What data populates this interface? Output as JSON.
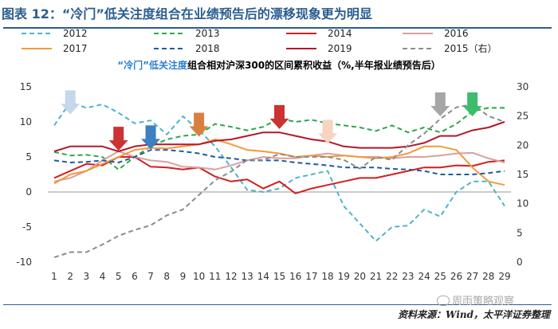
{
  "figure_title": "图表 12：“冷门”低关注度组合在业绩预告后的漂移现象更为明显",
  "source": "资料来源：Wind，太平洋证券整理",
  "watermark": "周雨策略观察",
  "chart_data": {
    "type": "line",
    "title_prefix": "“冷门”低关注度",
    "title_suffix": "组合相对沪深300的区间累积收益（%,半年报业绩预告后）",
    "x": [
      1,
      2,
      3,
      4,
      5,
      6,
      7,
      8,
      9,
      10,
      11,
      12,
      13,
      14,
      15,
      16,
      17,
      18,
      19,
      20,
      21,
      22,
      23,
      24,
      25,
      26,
      27,
      28,
      29
    ],
    "y_left": {
      "min": -10,
      "max": 15,
      "ticks": [
        -10,
        -5,
        0,
        5,
        10,
        15
      ]
    },
    "y_right": {
      "min": 0,
      "max": 30,
      "ticks": [
        0,
        5,
        10,
        15,
        20,
        25,
        30
      ]
    },
    "grid": false,
    "legend": [
      {
        "label": "2012",
        "color": "#4fb3c8",
        "dash": "dash"
      },
      {
        "label": "2013",
        "color": "#2aa84a",
        "dash": "dash"
      },
      {
        "label": "2014",
        "color": "#d21f1f",
        "dash": "solid"
      },
      {
        "label": "2016",
        "color": "#d9a0a0",
        "dash": "solid"
      },
      {
        "label": "2017",
        "color": "#f29a3a",
        "dash": "solid"
      },
      {
        "label": "2018",
        "color": "#1d5ba8",
        "dash": "dash"
      },
      {
        "label": "2019",
        "color": "#b5172a",
        "dash": "solid"
      },
      {
        "label": "2015（右）",
        "color": "#8c8c8c",
        "dash": "dash"
      }
    ],
    "series": [
      {
        "name": "2012",
        "axis": "left",
        "color": "#4fb3c8",
        "dash": "dash",
        "values": [
          9.5,
          12.8,
          12.0,
          12.5,
          11.3,
          9.8,
          10.2,
          8.2,
          10.8,
          8.8,
          6.5,
          3.5,
          0.3,
          0,
          0.5,
          2.0,
          2.5,
          3.0,
          -2.0,
          -4.5,
          -7.0,
          -5.0,
          -4.8,
          -2.5,
          -3.5,
          0,
          1.5,
          1.5,
          -2.0
        ]
      },
      {
        "name": "2013",
        "axis": "left",
        "color": "#2aa84a",
        "dash": "dash",
        "values": [
          5.7,
          5.2,
          5.3,
          5.0,
          3.2,
          5.0,
          6.5,
          7.5,
          8.0,
          8.2,
          9.7,
          9.3,
          8.8,
          9.3,
          10.5,
          10.0,
          10.3,
          9.8,
          9.5,
          9.2,
          8.7,
          9.5,
          8.5,
          9.2,
          8.5,
          9.7,
          11.5,
          12.0,
          12.0
        ]
      },
      {
        "name": "2014",
        "axis": "left",
        "color": "#d21f1f",
        "dash": "solid",
        "values": [
          2.0,
          3.0,
          4.0,
          3.8,
          5.0,
          5.0,
          3.6,
          3.5,
          3.2,
          3.5,
          2.2,
          1.5,
          1.8,
          0.5,
          1.5,
          -0.2,
          0.5,
          1.0,
          1.5,
          2.0,
          2.0,
          2.5,
          3.0,
          3.5,
          3.5,
          3.8,
          3.7,
          4.3,
          4.5
        ]
      },
      {
        "name": "2016",
        "axis": "left",
        "color": "#d9a0a0",
        "dash": "solid",
        "values": [
          1.5,
          2.0,
          3.0,
          4.5,
          5.8,
          5.0,
          4.5,
          4.3,
          3.6,
          3.5,
          3.2,
          3.8,
          4.5,
          5.0,
          4.8,
          4.8,
          5.2,
          5.5,
          5.2,
          5.0,
          5.0,
          4.8,
          5.0,
          5.0,
          5.2,
          5.5,
          5.6,
          4.8,
          4.2
        ]
      },
      {
        "name": "2017",
        "axis": "left",
        "color": "#f29a3a",
        "dash": "solid",
        "values": [
          1.2,
          2.5,
          3.0,
          4.0,
          5.0,
          6.0,
          6.3,
          6.2,
          6.5,
          6.8,
          7.5,
          6.8,
          6.0,
          5.8,
          5.5,
          5.0,
          5.2,
          5.0,
          5.2,
          5.0,
          4.8,
          5.0,
          5.5,
          6.5,
          6.5,
          6.0,
          3.5,
          1.5,
          1.0
        ]
      },
      {
        "name": "2018",
        "axis": "left",
        "color": "#1d5ba8",
        "dash": "dash",
        "values": [
          4.5,
          4.2,
          4.3,
          4.5,
          4.2,
          5.0,
          6.0,
          6.0,
          5.8,
          5.5,
          5.0,
          4.8,
          4.5,
          4.5,
          4.5,
          4.2,
          4.0,
          3.8,
          3.5,
          3.5,
          3.5,
          3.3,
          3.2,
          3.0,
          2.5,
          2.5,
          2.5,
          2.7,
          3.0
        ]
      },
      {
        "name": "2019",
        "axis": "left",
        "color": "#b5172a",
        "dash": "solid",
        "values": [
          5.8,
          6.5,
          6.5,
          6.5,
          5.8,
          6.5,
          6.8,
          6.8,
          6.8,
          6.8,
          7.3,
          7.5,
          8.0,
          8.5,
          8.5,
          8.0,
          7.5,
          7.2,
          6.5,
          6.3,
          6.3,
          6.3,
          6.5,
          7.0,
          8.0,
          8.0,
          8.8,
          9.2,
          10.0
        ]
      },
      {
        "name": "2015（右）",
        "axis": "right",
        "color": "#8c8c8c",
        "dash": "dash",
        "values": [
          0.8,
          1.7,
          1.7,
          3.0,
          4.5,
          5.5,
          6.3,
          8.0,
          9.0,
          11.5,
          14.0,
          15.5,
          17.5,
          17.5,
          18.5,
          18.0,
          18.0,
          18.0,
          17.5,
          16.0,
          18.0,
          17.5,
          20.0,
          22.0,
          24.5,
          26.5,
          27.0,
          25.0,
          24.0
        ]
      }
    ],
    "arrows": [
      {
        "x": 2,
        "y": 14.5,
        "color": "#c5d7ea"
      },
      {
        "x": 5,
        "y": 9.3,
        "color": "#cc3333"
      },
      {
        "x": 7,
        "y": 9.5,
        "color": "#3c7fc2"
      },
      {
        "x": 10,
        "y": 11.3,
        "color": "#d98040"
      },
      {
        "x": 15,
        "y": 12.4,
        "color": "#cc3333"
      },
      {
        "x": 18,
        "y": 10.3,
        "color": "#f6d4c0"
      },
      {
        "x": 25,
        "y": 14.2,
        "color": "#a6a6a6"
      },
      {
        "x": 27,
        "y": 14.2,
        "color": "#3cbc6c"
      }
    ]
  }
}
